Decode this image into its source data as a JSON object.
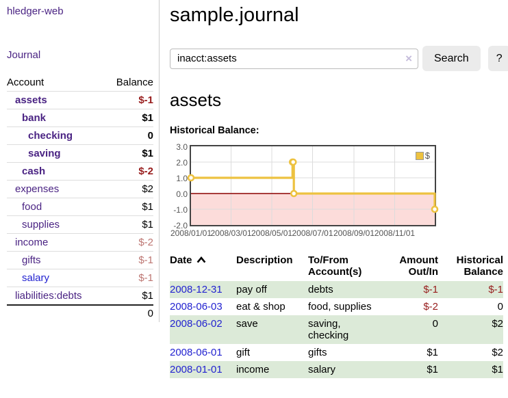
{
  "brand": "hledger-web",
  "sidebar": {
    "journal_link": "Journal",
    "accounts_table": {
      "headers": {
        "account": "Account",
        "balance": "Balance"
      },
      "rows": [
        {
          "name": "assets",
          "balance": "$-1",
          "level": 1,
          "bold": true,
          "name_color": "purple",
          "balance_color": "neg"
        },
        {
          "name": "bank",
          "balance": "$1",
          "level": 2,
          "bold": true,
          "name_color": "purple",
          "balance_color": "pos"
        },
        {
          "name": "checking",
          "balance": "0",
          "level": 3,
          "bold": true,
          "name_color": "purple",
          "balance_color": "pos"
        },
        {
          "name": "saving",
          "balance": "$1",
          "level": 3,
          "bold": true,
          "name_color": "purple",
          "balance_color": "pos"
        },
        {
          "name": "cash",
          "balance": "$-2",
          "level": 2,
          "bold": true,
          "name_color": "purple",
          "balance_color": "neg"
        },
        {
          "name": "expenses",
          "balance": "$2",
          "level": 1,
          "bold": false,
          "name_color": "purple",
          "balance_color": "pos"
        },
        {
          "name": "food",
          "balance": "$1",
          "level": 2,
          "bold": false,
          "name_color": "purple",
          "balance_color": "pos"
        },
        {
          "name": "supplies",
          "balance": "$1",
          "level": 2,
          "bold": false,
          "name_color": "purple",
          "balance_color": "pos"
        },
        {
          "name": "income",
          "balance": "$-2",
          "level": 1,
          "bold": false,
          "name_color": "purple",
          "balance_color": "negsoft"
        },
        {
          "name": "gifts",
          "balance": "$-1",
          "level": 2,
          "bold": false,
          "name_color": "purple",
          "balance_color": "negsoft"
        },
        {
          "name": "salary",
          "balance": "$-1",
          "level": 2,
          "bold": false,
          "name_color": "blue",
          "balance_color": "negsoft"
        },
        {
          "name": "liabilities:debts",
          "balance": "$1",
          "level": 1,
          "bold": false,
          "name_color": "purple",
          "balance_color": "pos"
        }
      ],
      "total": "0"
    }
  },
  "header": {
    "title": "sample.journal"
  },
  "search": {
    "value": "inacct:assets",
    "clear_icon": "×",
    "button_label": "Search",
    "help_label": "?"
  },
  "account_page": {
    "title": "assets",
    "chart_label": "Historical Balance:"
  },
  "chart_data": {
    "type": "line",
    "style": "step",
    "title": "Historical Balance",
    "series": [
      {
        "name": "$",
        "color": "#edc240",
        "points": [
          {
            "x": "2008-01-01",
            "y": 1
          },
          {
            "x": "2008-06-01",
            "y": 2
          },
          {
            "x": "2008-06-02",
            "y": 2
          },
          {
            "x": "2008-06-03",
            "y": 0
          },
          {
            "x": "2008-12-31",
            "y": -1
          }
        ]
      }
    ],
    "x_start": "2008-01-01",
    "x_end": "2008-12-31",
    "ylim": [
      -2.0,
      3.0
    ],
    "yticks": [
      "3.0",
      "2.0",
      "1.0",
      "0.0",
      "-1.0",
      "-2.0"
    ],
    "ytick_values": [
      3,
      2,
      1,
      0,
      -1,
      -2
    ],
    "xticks": [
      "2008/01/01",
      "2008/03/01",
      "2008/05/01",
      "2008/07/01",
      "2008/09/01",
      "2008/11/01"
    ],
    "grid": true,
    "legend": {
      "position": "top-right",
      "label": "$"
    },
    "colors": {
      "line": "#edc240",
      "negative_region": "#fcdcda",
      "zero_line": "#8b0000",
      "gridline": "#dcdcdc",
      "border": "#434343"
    }
  },
  "register_table": {
    "headers": {
      "date": "Date",
      "description": "Description",
      "account": "To/From Account(s)",
      "amount": "Amount Out/In",
      "balance": "Historical Balance"
    },
    "rows": [
      {
        "date": "2008-12-31",
        "description": "pay off",
        "accounts": "debts",
        "amount": "$-1",
        "amount_neg": true,
        "balance": "$-1",
        "balance_neg": true
      },
      {
        "date": "2008-06-03",
        "description": "eat & shop",
        "accounts": "food, supplies",
        "amount": "$-2",
        "amount_neg": true,
        "balance": "0",
        "balance_neg": false
      },
      {
        "date": "2008-06-02",
        "description": "save",
        "accounts": "saving, checking",
        "amount": "0",
        "amount_neg": false,
        "balance": "$2",
        "balance_neg": false
      },
      {
        "date": "2008-06-01",
        "description": "gift",
        "accounts": "gifts",
        "amount": "$1",
        "amount_neg": false,
        "balance": "$2",
        "balance_neg": false
      },
      {
        "date": "2008-01-01",
        "description": "income",
        "accounts": "salary",
        "amount": "$1",
        "amount_neg": false,
        "balance": "$1",
        "balance_neg": false
      }
    ]
  },
  "colors": {
    "accent_purple": "#4a2383",
    "link_blue": "#2222d0",
    "negative_red": "#971c1c",
    "negative_soft_red": "#bd7672",
    "row_green": "#dcead8"
  }
}
